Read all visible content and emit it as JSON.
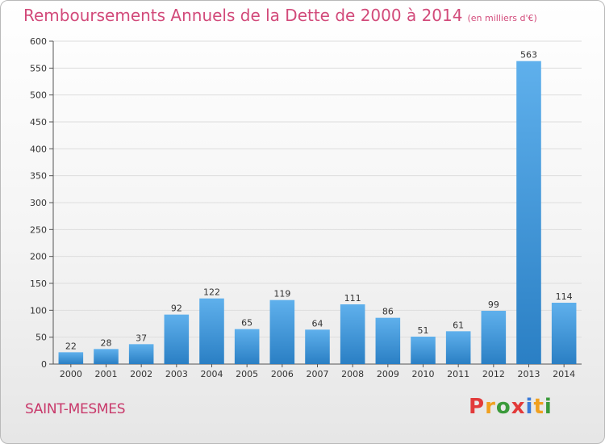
{
  "title": "Remboursements Annuels de la Dette de 2000 à 2014",
  "unit": "(en milliers d'€)",
  "commune": "SAINT-MESMES",
  "logo": {
    "text": "Proxiti",
    "letters": [
      {
        "ch": "P",
        "color": "#e23a3a"
      },
      {
        "ch": "r",
        "color": "#f0a020"
      },
      {
        "ch": "o",
        "color": "#3a9a3a"
      },
      {
        "ch": "x",
        "color": "#e23a3a"
      },
      {
        "ch": "i",
        "color": "#3a7ad8"
      },
      {
        "ch": "t",
        "color": "#f0a020"
      },
      {
        "ch": "i",
        "color": "#3a9a3a"
      }
    ]
  },
  "colors": {
    "bar_top": "#5fb0ec",
    "bar_bottom": "#2a7fc4",
    "title": "#d24a7a",
    "grid": "#dddddd"
  },
  "chart_data": {
    "type": "bar",
    "categories": [
      "2000",
      "2001",
      "2002",
      "2003",
      "2004",
      "2005",
      "2006",
      "2007",
      "2008",
      "2009",
      "2010",
      "2011",
      "2012",
      "2013",
      "2014"
    ],
    "values": [
      22,
      28,
      37,
      92,
      122,
      65,
      119,
      64,
      111,
      86,
      51,
      61,
      99,
      563,
      114
    ],
    "ylim": [
      0,
      600
    ],
    "yticks": [
      0,
      50,
      100,
      150,
      200,
      250,
      300,
      350,
      400,
      450,
      500,
      550,
      600
    ],
    "grid": true,
    "xlabel": "",
    "ylabel": ""
  }
}
